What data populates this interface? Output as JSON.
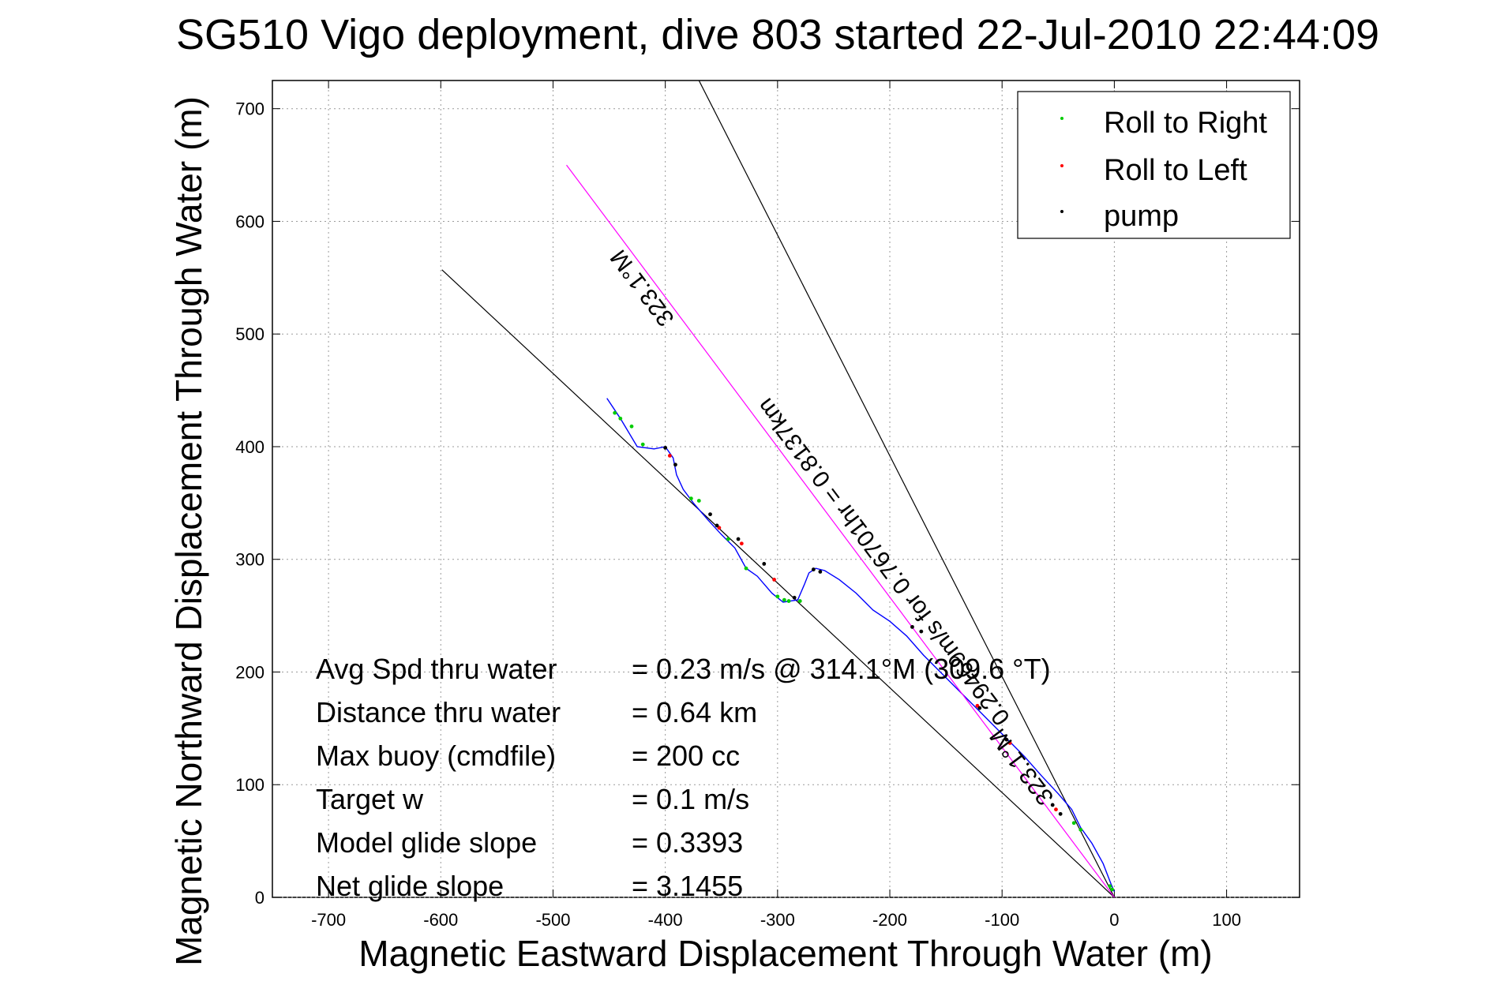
{
  "chart_data": {
    "type": "line",
    "title": "SG510 Vigo deployment, dive 803 started 22-Jul-2010 22:44:09",
    "xlabel": "Magnetic Eastward Displacement Through Water (m)",
    "ylabel": "Magnetic Northward Displacement Through Water (m)",
    "xlim": [
      -750,
      165
    ],
    "ylim": [
      0,
      725
    ],
    "xticks": [
      -700,
      -600,
      -500,
      -400,
      -300,
      -200,
      -100,
      0,
      100
    ],
    "xtick_labels": [
      "-700",
      "-600",
      "-500",
      "-400",
      "-300",
      "-200",
      "-100",
      "0",
      "100"
    ],
    "yticks": [
      0,
      100,
      200,
      300,
      400,
      500,
      600,
      700
    ],
    "ytick_labels": [
      "0",
      "100",
      "200",
      "300",
      "400",
      "500",
      "600",
      "700"
    ],
    "grid": true,
    "legend": {
      "position": "top-right",
      "entries": [
        {
          "label": "Roll to Right",
          "color": "#00cc00"
        },
        {
          "label": "Roll to Left",
          "color": "#ff0000"
        },
        {
          "label": "pump",
          "color": "#000000"
        }
      ]
    },
    "series": [
      {
        "kind": "track",
        "color": "#0000ff",
        "x": [
          -452,
          -440,
          -425,
          -410,
          -400,
          -393,
          -390,
          -384,
          -375,
          -362,
          -350,
          -338,
          -328,
          -318,
          -305,
          -295,
          -282,
          -276,
          -272,
          -266,
          -258,
          -245,
          -230,
          -215,
          -200,
          -185,
          -170,
          -155,
          -140,
          -125,
          -110,
          -95,
          -80,
          -65,
          -50,
          -38,
          -30,
          -20,
          -10,
          -3,
          0
        ],
        "y": [
          443,
          425,
          400,
          398,
          400,
          390,
          375,
          362,
          350,
          335,
          322,
          310,
          292,
          285,
          270,
          262,
          264,
          278,
          288,
          292,
          290,
          282,
          270,
          255,
          245,
          232,
          215,
          200,
          185,
          170,
          155,
          140,
          125,
          108,
          92,
          78,
          62,
          48,
          30,
          12,
          5
        ]
      },
      {
        "kind": "course",
        "color": "#ff00ff",
        "x": [
          -488,
          0
        ],
        "y": [
          650,
          0
        ]
      },
      {
        "kind": "reference",
        "color": "#000000",
        "x": [
          -599,
          0
        ],
        "y": [
          557,
          0
        ]
      },
      {
        "kind": "reference",
        "color": "#000000",
        "x": [
          -370,
          0
        ],
        "y": [
          725,
          0
        ]
      }
    ],
    "pump_points": {
      "x": [
        -400,
        -391,
        -360,
        -354,
        -335,
        -312,
        -285,
        -268,
        -262,
        -180,
        -172,
        -120,
        -96,
        -55,
        -48
      ],
      "y": [
        399,
        384,
        340,
        330,
        318,
        296,
        266,
        291,
        289,
        240,
        236,
        168,
        140,
        82,
        74
      ]
    },
    "roll_left_points": {
      "x": [
        -396,
        -352,
        -332,
        -303,
        -122,
        -93,
        -52
      ],
      "y": [
        392,
        328,
        314,
        282,
        170,
        137,
        78
      ]
    },
    "roll_right_points": {
      "x": [
        -445,
        -440,
        -430,
        -420,
        -377,
        -370,
        -344,
        -328,
        -300,
        -294,
        -290,
        -280,
        -36,
        -30,
        -4,
        -2
      ],
      "y": [
        430,
        425,
        418,
        402,
        354,
        352,
        318,
        292,
        267,
        264,
        263,
        263,
        66,
        60,
        10,
        7
      ]
    },
    "annotations": {
      "bearing_top": "323.1°M",
      "course_label": "0.8137km",
      "speed_line": "0.29469m/s for 0.76701hr = 0.8137km",
      "bearing_bottom": "323.1°M"
    },
    "stats": [
      {
        "label": "Avg Spd thru water",
        "value": "=  0.23 m/s @ 314.1°M (309.6 °T)"
      },
      {
        "label": "Distance thru water",
        "value": "=  0.64 km"
      },
      {
        "label": "Max buoy (cmdfile)",
        "value": "= 200 cc"
      },
      {
        "label": "Target w",
        "value": "= 0.1 m/s"
      },
      {
        "label": "Model glide slope",
        "value": "= 0.3393"
      },
      {
        "label": "Net glide slope",
        "value": "= 3.1455"
      }
    ]
  }
}
